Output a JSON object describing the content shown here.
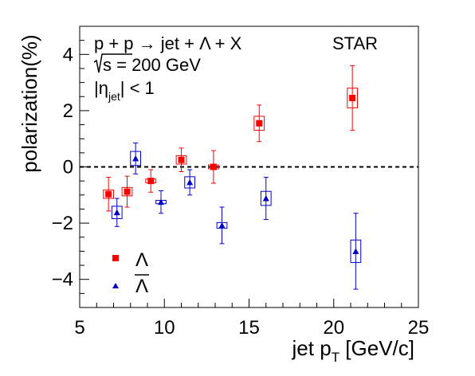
{
  "chart_data": {
    "type": "scatter",
    "title": "",
    "xlabel_main": "jet p",
    "xlabel_sub": "T",
    "xlabel_unit": " [GeV/c]",
    "ylabel": "polarization(%)",
    "xlim": [
      5,
      25
    ],
    "ylim": [
      -5,
      5
    ],
    "x_ticks": [
      "5",
      "10",
      "15",
      "20",
      "25"
    ],
    "y_ticks": [
      "4",
      "2",
      "0",
      "−2",
      "−4"
    ],
    "x_tick_values": [
      5,
      10,
      15,
      20,
      25
    ],
    "y_tick_values": [
      4,
      2,
      0,
      -2,
      -4
    ],
    "zero_line": true,
    "grid": false,
    "legend_position": "bottom-left",
    "annotations": {
      "reaction": "p + p → jet + Λ + X",
      "energy": "s = 200 GeV",
      "eta_main": "|η",
      "eta_sub": "jet",
      "eta_rest": "| < 1",
      "experiment": "STAR"
    },
    "series": [
      {
        "name": "Λ",
        "color": "#ff0000",
        "marker": "square",
        "points": [
          {
            "x": 6.7,
            "y": -0.97,
            "stat": 0.6,
            "sys_y": 0.15,
            "sys_x": 0.3
          },
          {
            "x": 7.8,
            "y": -0.88,
            "stat": 0.55,
            "sys_y": 0.15,
            "sys_x": 0.3
          },
          {
            "x": 9.2,
            "y": -0.5,
            "stat": 0.4,
            "sys_y": 0.07,
            "sys_x": 0.3
          },
          {
            "x": 11.0,
            "y": 0.25,
            "stat": 0.42,
            "sys_y": 0.15,
            "sys_x": 0.3
          },
          {
            "x": 12.9,
            "y": 0.0,
            "stat": 0.58,
            "sys_y": 0.07,
            "sys_x": 0.3
          },
          {
            "x": 15.6,
            "y": 1.55,
            "stat": 0.65,
            "sys_y": 0.25,
            "sys_x": 0.3
          },
          {
            "x": 21.1,
            "y": 2.45,
            "stat": 1.15,
            "sys_y": 0.35,
            "sys_x": 0.3
          }
        ]
      },
      {
        "name": "Λ̅",
        "color": "#0000cc",
        "marker": "triangle",
        "points": [
          {
            "x": 7.2,
            "y": -1.62,
            "stat": 0.5,
            "sys_y": 0.22,
            "sys_x": 0.3
          },
          {
            "x": 8.3,
            "y": 0.3,
            "stat": 0.55,
            "sys_y": 0.25,
            "sys_x": 0.3
          },
          {
            "x": 9.8,
            "y": -1.25,
            "stat": 0.4,
            "sys_y": 0.06,
            "sys_x": 0.3
          },
          {
            "x": 11.5,
            "y": -0.55,
            "stat": 0.45,
            "sys_y": 0.2,
            "sys_x": 0.3
          },
          {
            "x": 13.4,
            "y": -2.08,
            "stat": 0.65,
            "sys_y": 0.1,
            "sys_x": 0.3
          },
          {
            "x": 16.0,
            "y": -1.12,
            "stat": 0.75,
            "sys_y": 0.25,
            "sys_x": 0.3
          },
          {
            "x": 21.3,
            "y": -3.0,
            "stat": 1.35,
            "sys_y": 0.4,
            "sys_x": 0.3
          }
        ]
      }
    ]
  }
}
